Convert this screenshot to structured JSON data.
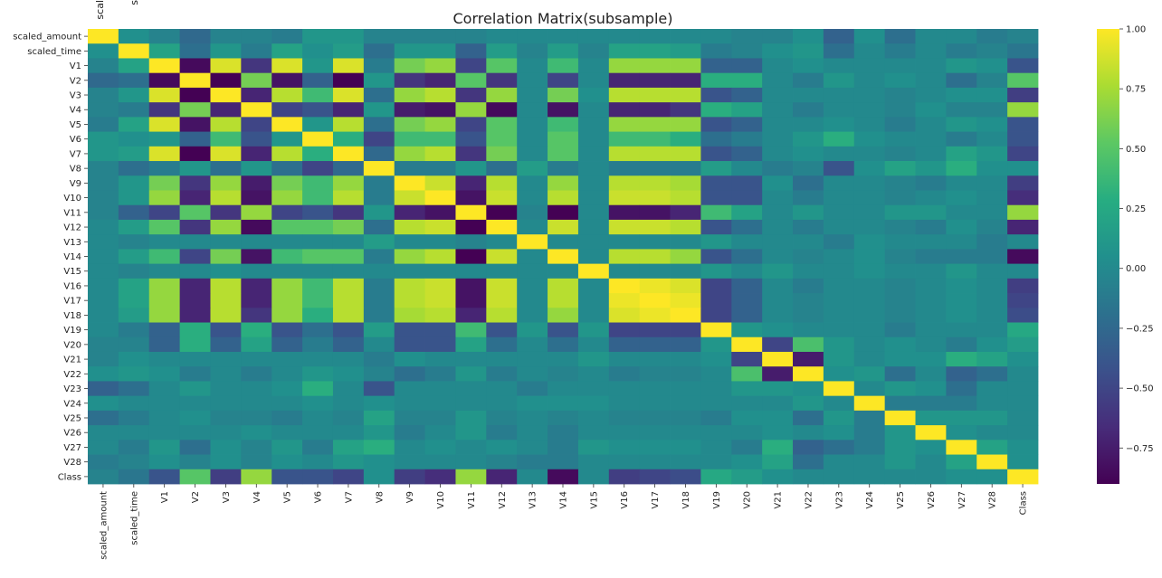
{
  "chart_data": {
    "type": "heatmap",
    "title": "Correlation Matrix(subsample)",
    "labels": [
      "scaled_amount",
      "scaled_time",
      "V1",
      "V2",
      "V3",
      "V4",
      "V5",
      "V6",
      "V7",
      "V8",
      "V9",
      "V10",
      "V11",
      "V12",
      "V13",
      "V14",
      "V15",
      "V16",
      "V17",
      "V18",
      "V19",
      "V20",
      "V21",
      "V22",
      "V23",
      "V24",
      "V25",
      "V26",
      "V27",
      "V28",
      "Class"
    ],
    "top_cut_labels": [
      "scal",
      "s"
    ],
    "colorbar": {
      "vmin": -0.9,
      "vmax": 1.0,
      "ticks": [
        1.0,
        0.75,
        0.5,
        0.25,
        0.0,
        -0.25,
        -0.5,
        -0.75
      ],
      "tick_labels": [
        "1.00",
        "0.75",
        "0.50",
        "0.25",
        "0.00",
        "−0.25",
        "−0.50",
        "−0.75"
      ],
      "colormap": "viridis"
    },
    "matrix": [
      [
        1.0,
        0.05,
        -0.05,
        -0.25,
        -0.05,
        -0.05,
        -0.1,
        0.1,
        0.1,
        -0.05,
        -0.05,
        -0.05,
        -0.05,
        0.0,
        0.0,
        0.0,
        0.0,
        0.0,
        0.0,
        0.0,
        0.0,
        -0.05,
        -0.05,
        0.05,
        -0.3,
        0.05,
        -0.2,
        0.0,
        0.0,
        -0.1,
        -0.05
      ],
      [
        0.05,
        1.0,
        0.2,
        -0.2,
        0.1,
        -0.1,
        0.2,
        0.05,
        0.15,
        -0.2,
        0.1,
        0.1,
        -0.3,
        0.15,
        -0.05,
        0.15,
        -0.05,
        0.2,
        0.2,
        0.15,
        -0.1,
        -0.05,
        0.05,
        0.1,
        -0.2,
        0.0,
        -0.1,
        0.0,
        -0.1,
        -0.05,
        -0.15
      ],
      [
        -0.05,
        0.2,
        1.0,
        -0.85,
        0.9,
        -0.6,
        0.9,
        0.1,
        0.9,
        -0.1,
        0.6,
        0.7,
        -0.5,
        0.5,
        0.0,
        0.4,
        0.0,
        0.7,
        0.7,
        0.7,
        -0.3,
        -0.3,
        0.0,
        0.05,
        0.0,
        0.0,
        0.0,
        0.0,
        0.1,
        0.05,
        -0.4
      ],
      [
        -0.25,
        -0.2,
        -0.85,
        1.0,
        -0.9,
        0.6,
        -0.8,
        -0.3,
        -0.9,
        0.1,
        -0.6,
        -0.7,
        0.5,
        -0.6,
        0.0,
        -0.5,
        0.0,
        -0.7,
        -0.7,
        -0.7,
        0.3,
        0.3,
        0.0,
        -0.1,
        0.1,
        0.0,
        0.05,
        0.0,
        -0.2,
        -0.05,
        0.5
      ],
      [
        -0.05,
        0.1,
        0.9,
        -0.9,
        1.0,
        -0.7,
        0.8,
        0.4,
        0.9,
        -0.2,
        0.7,
        0.8,
        -0.6,
        0.7,
        0.0,
        0.6,
        0.05,
        0.8,
        0.8,
        0.8,
        -0.4,
        -0.3,
        0.0,
        0.0,
        0.0,
        0.0,
        -0.05,
        0.0,
        0.05,
        0.05,
        -0.55
      ],
      [
        -0.05,
        -0.1,
        -0.6,
        0.6,
        -0.7,
        1.0,
        -0.5,
        -0.4,
        -0.7,
        0.1,
        -0.75,
        -0.8,
        0.7,
        -0.85,
        0.0,
        -0.8,
        0.0,
        -0.7,
        -0.7,
        -0.6,
        0.3,
        0.2,
        0.0,
        -0.1,
        0.0,
        0.0,
        -0.05,
        0.05,
        -0.05,
        -0.05,
        0.7
      ],
      [
        -0.1,
        0.2,
        0.9,
        -0.8,
        0.8,
        -0.5,
        1.0,
        0.1,
        0.8,
        -0.2,
        0.6,
        0.7,
        -0.5,
        0.5,
        0.0,
        0.4,
        0.0,
        0.7,
        0.7,
        0.7,
        -0.4,
        -0.3,
        0.0,
        0.0,
        0.05,
        0.0,
        -0.1,
        0.0,
        0.1,
        0.05,
        -0.4
      ],
      [
        0.1,
        0.05,
        0.1,
        -0.3,
        0.4,
        -0.4,
        0.1,
        1.0,
        0.3,
        -0.5,
        0.4,
        0.4,
        -0.4,
        0.5,
        0.0,
        0.5,
        0.0,
        0.4,
        0.4,
        0.3,
        -0.2,
        -0.1,
        0.0,
        0.1,
        0.3,
        0.05,
        0.0,
        0.0,
        -0.1,
        0.0,
        -0.4
      ],
      [
        0.1,
        0.15,
        0.9,
        -0.9,
        0.9,
        -0.7,
        0.8,
        0.3,
        1.0,
        -0.25,
        0.7,
        0.8,
        -0.6,
        0.6,
        0.0,
        0.5,
        0.0,
        0.8,
        0.8,
        0.8,
        -0.4,
        -0.3,
        0.0,
        0.05,
        0.0,
        0.0,
        -0.05,
        0.0,
        0.2,
        0.1,
        -0.5
      ],
      [
        -0.05,
        -0.2,
        -0.1,
        0.1,
        -0.2,
        0.1,
        -0.2,
        -0.5,
        -0.25,
        1.0,
        -0.1,
        -0.1,
        0.1,
        -0.2,
        0.15,
        -0.1,
        0.0,
        -0.1,
        -0.1,
        -0.1,
        0.15,
        0.0,
        -0.1,
        -0.05,
        -0.4,
        0.05,
        0.2,
        0.1,
        0.3,
        0.05,
        0.05
      ],
      [
        -0.05,
        0.1,
        0.6,
        -0.6,
        0.7,
        -0.75,
        0.6,
        0.4,
        0.7,
        -0.1,
        1.0,
        0.85,
        -0.7,
        0.8,
        0.0,
        0.7,
        0.0,
        0.8,
        0.8,
        0.75,
        -0.4,
        -0.4,
        0.05,
        -0.2,
        0.0,
        0.0,
        -0.05,
        -0.1,
        0.0,
        0.0,
        -0.55
      ],
      [
        -0.05,
        0.1,
        0.7,
        -0.7,
        0.8,
        -0.8,
        0.7,
        0.4,
        0.8,
        -0.1,
        0.85,
        1.0,
        -0.8,
        0.85,
        0.0,
        0.8,
        0.0,
        0.85,
        0.85,
        0.8,
        -0.4,
        -0.4,
        0.0,
        -0.1,
        0.0,
        0.0,
        -0.05,
        0.0,
        0.05,
        0.0,
        -0.65
      ],
      [
        -0.05,
        -0.3,
        -0.5,
        0.5,
        -0.6,
        0.7,
        -0.5,
        -0.4,
        -0.6,
        0.1,
        -0.7,
        -0.8,
        1.0,
        -0.9,
        -0.05,
        -0.9,
        0.0,
        -0.8,
        -0.8,
        -0.7,
        0.4,
        0.2,
        0.0,
        0.1,
        0.0,
        0.0,
        0.1,
        0.1,
        0.0,
        0.0,
        0.7
      ],
      [
        0.0,
        0.15,
        0.5,
        -0.6,
        0.7,
        -0.85,
        0.5,
        0.5,
        0.6,
        -0.2,
        0.8,
        0.85,
        -0.9,
        1.0,
        0.0,
        0.85,
        0.0,
        0.85,
        0.85,
        0.8,
        -0.4,
        -0.2,
        0.0,
        -0.1,
        0.0,
        0.0,
        -0.05,
        -0.1,
        0.05,
        -0.05,
        -0.7
      ],
      [
        0.0,
        -0.05,
        0.0,
        0.0,
        0.0,
        0.0,
        0.0,
        0.0,
        0.0,
        0.15,
        0.0,
        0.0,
        -0.05,
        0.0,
        1.0,
        0.0,
        0.0,
        0.0,
        0.0,
        0.0,
        0.1,
        0.0,
        0.0,
        0.0,
        -0.1,
        0.05,
        0.0,
        0.0,
        0.0,
        -0.1,
        0.0
      ],
      [
        0.0,
        0.15,
        0.4,
        -0.5,
        0.6,
        -0.8,
        0.4,
        0.5,
        0.5,
        -0.1,
        0.7,
        0.8,
        -0.9,
        0.85,
        0.0,
        1.0,
        0.0,
        0.8,
        0.8,
        0.7,
        -0.4,
        -0.2,
        0.0,
        -0.05,
        0.0,
        0.05,
        -0.05,
        -0.1,
        -0.1,
        -0.1,
        -0.85
      ],
      [
        0.0,
        -0.05,
        0.0,
        0.0,
        0.05,
        0.0,
        0.0,
        0.0,
        0.0,
        0.0,
        0.0,
        0.0,
        0.0,
        0.0,
        0.0,
        0.0,
        1.0,
        0.0,
        0.0,
        0.0,
        0.1,
        0.0,
        0.1,
        0.0,
        0.0,
        0.05,
        0.0,
        0.0,
        0.1,
        0.0,
        0.0
      ],
      [
        0.0,
        0.2,
        0.7,
        -0.7,
        0.8,
        -0.7,
        0.7,
        0.4,
        0.8,
        -0.1,
        0.8,
        0.85,
        -0.8,
        0.85,
        0.0,
        0.8,
        0.0,
        1.0,
        0.95,
        0.9,
        -0.5,
        -0.3,
        0.0,
        -0.1,
        0.0,
        0.0,
        -0.05,
        0.0,
        0.05,
        0.0,
        -0.55
      ],
      [
        0.0,
        0.2,
        0.7,
        -0.7,
        0.8,
        -0.7,
        0.7,
        0.4,
        0.8,
        -0.1,
        0.8,
        0.85,
        -0.8,
        0.85,
        0.0,
        0.8,
        0.0,
        0.95,
        1.0,
        0.95,
        -0.5,
        -0.3,
        0.0,
        -0.05,
        0.0,
        0.0,
        -0.05,
        0.0,
        0.05,
        0.0,
        -0.5
      ],
      [
        0.0,
        0.15,
        0.7,
        -0.7,
        0.8,
        -0.6,
        0.7,
        0.3,
        0.8,
        -0.1,
        0.75,
        0.8,
        -0.7,
        0.8,
        0.0,
        0.7,
        0.0,
        0.9,
        0.95,
        1.0,
        -0.5,
        -0.3,
        0.0,
        -0.05,
        0.0,
        0.0,
        -0.05,
        0.0,
        0.05,
        0.0,
        -0.45
      ],
      [
        0.0,
        -0.1,
        -0.3,
        0.3,
        -0.4,
        0.3,
        -0.4,
        -0.2,
        -0.4,
        0.15,
        -0.4,
        -0.4,
        0.4,
        -0.4,
        0.1,
        -0.4,
        0.1,
        -0.5,
        -0.5,
        -0.5,
        1.0,
        0.1,
        0.05,
        0.0,
        0.0,
        0.0,
        -0.1,
        0.0,
        0.0,
        0.0,
        0.25
      ],
      [
        -0.05,
        -0.05,
        -0.3,
        0.3,
        -0.3,
        0.2,
        -0.3,
        -0.1,
        -0.3,
        0.0,
        -0.4,
        -0.4,
        0.2,
        -0.2,
        0.0,
        -0.2,
        0.0,
        -0.3,
        -0.3,
        -0.3,
        0.1,
        1.0,
        -0.5,
        0.45,
        0.1,
        0.0,
        0.05,
        0.0,
        -0.1,
        0.05,
        0.15
      ],
      [
        -0.05,
        0.05,
        0.0,
        0.0,
        0.0,
        0.0,
        0.0,
        0.0,
        0.0,
        -0.1,
        0.05,
        0.0,
        0.0,
        0.0,
        0.0,
        0.0,
        0.1,
        0.0,
        0.0,
        0.0,
        0.05,
        -0.5,
        1.0,
        -0.75,
        0.1,
        0.0,
        0.05,
        0.05,
        0.3,
        0.2,
        0.05
      ],
      [
        0.05,
        0.1,
        0.05,
        -0.1,
        0.0,
        -0.1,
        0.0,
        0.1,
        0.05,
        -0.05,
        -0.2,
        -0.1,
        0.1,
        -0.1,
        0.0,
        -0.05,
        0.0,
        -0.1,
        -0.05,
        -0.05,
        0.0,
        0.45,
        -0.75,
        1.0,
        0.05,
        0.1,
        -0.2,
        0.0,
        -0.3,
        -0.2,
        0.0
      ],
      [
        -0.3,
        -0.2,
        0.0,
        0.1,
        0.0,
        0.0,
        0.05,
        0.3,
        0.0,
        -0.4,
        0.0,
        0.0,
        0.0,
        0.0,
        -0.1,
        0.0,
        0.0,
        0.0,
        0.0,
        0.0,
        0.0,
        0.1,
        0.1,
        0.05,
        1.0,
        0.0,
        0.1,
        0.05,
        -0.2,
        0.0,
        0.0
      ],
      [
        0.05,
        0.0,
        0.0,
        0.0,
        0.0,
        0.0,
        0.0,
        0.05,
        0.0,
        0.05,
        0.0,
        0.0,
        0.0,
        0.0,
        0.05,
        0.05,
        0.05,
        0.0,
        0.0,
        0.0,
        0.0,
        0.0,
        0.0,
        0.1,
        0.0,
        1.0,
        -0.1,
        -0.1,
        -0.1,
        0.0,
        0.0
      ],
      [
        -0.2,
        -0.1,
        0.0,
        0.05,
        -0.05,
        -0.05,
        -0.1,
        0.0,
        -0.05,
        0.2,
        -0.05,
        -0.05,
        0.1,
        -0.05,
        0.0,
        -0.05,
        0.0,
        -0.05,
        -0.05,
        -0.05,
        -0.1,
        0.05,
        0.05,
        -0.2,
        0.1,
        -0.1,
        1.0,
        0.1,
        0.1,
        0.1,
        0.0
      ],
      [
        0.0,
        0.0,
        0.0,
        0.0,
        0.0,
        0.05,
        0.0,
        0.0,
        0.0,
        0.1,
        -0.1,
        0.0,
        0.1,
        -0.1,
        0.0,
        -0.1,
        0.0,
        0.0,
        0.0,
        0.0,
        0.0,
        0.0,
        0.05,
        0.0,
        0.05,
        -0.1,
        0.1,
        1.0,
        0.05,
        0.0,
        0.0
      ],
      [
        0.0,
        -0.1,
        0.1,
        -0.2,
        0.05,
        -0.05,
        0.1,
        -0.1,
        0.2,
        0.3,
        0.0,
        0.05,
        0.0,
        0.05,
        0.0,
        -0.1,
        0.1,
        0.05,
        0.05,
        0.05,
        0.0,
        -0.1,
        0.3,
        -0.3,
        -0.2,
        -0.1,
        0.1,
        0.05,
        1.0,
        0.2,
        0.05
      ],
      [
        -0.1,
        -0.05,
        0.05,
        -0.05,
        0.05,
        -0.05,
        0.05,
        0.0,
        0.1,
        0.05,
        0.0,
        0.0,
        0.0,
        -0.05,
        -0.1,
        -0.1,
        0.0,
        0.0,
        0.0,
        0.0,
        0.0,
        0.05,
        0.2,
        -0.2,
        0.0,
        0.0,
        0.1,
        0.0,
        0.2,
        1.0,
        0.05
      ],
      [
        -0.05,
        -0.15,
        -0.4,
        0.5,
        -0.55,
        0.7,
        -0.4,
        -0.4,
        -0.5,
        0.05,
        -0.55,
        -0.65,
        0.7,
        -0.7,
        0.0,
        -0.85,
        0.0,
        -0.55,
        -0.5,
        -0.45,
        0.25,
        0.15,
        0.05,
        0.0,
        0.0,
        0.0,
        0.0,
        0.0,
        0.05,
        0.05,
        1.0
      ]
    ]
  }
}
